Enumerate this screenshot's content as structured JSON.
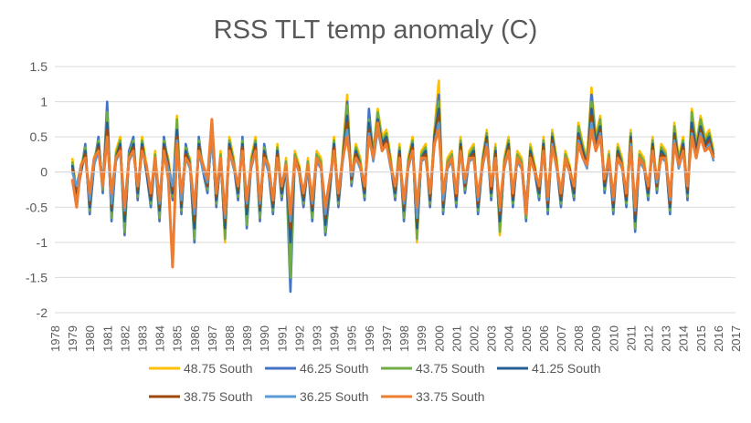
{
  "chart_data": {
    "type": "line",
    "title": "RSS TLT temp anomaly (C)",
    "xlabel": "",
    "ylabel": "",
    "xlim": [
      1978,
      2017
    ],
    "ylim": [
      -2,
      1.5
    ],
    "x_ticks": [
      "1978",
      "1979",
      "1980",
      "1981",
      "1982",
      "1983",
      "1984",
      "1985",
      "1986",
      "1987",
      "1988",
      "1989",
      "1990",
      "1991",
      "1992",
      "1993",
      "1994",
      "1995",
      "1996",
      "1997",
      "1998",
      "1999",
      "2000",
      "2001",
      "2002",
      "2003",
      "2004",
      "2005",
      "2006",
      "2007",
      "2008",
      "2009",
      "2010",
      "2011",
      "2012",
      "2013",
      "2014",
      "2015",
      "2016",
      "2017"
    ],
    "y_ticks": [
      "1.5",
      "1",
      "0.5",
      "0",
      "-0.5",
      "-1",
      "-1.5",
      "-2"
    ],
    "grid": true,
    "legend_position": "bottom",
    "x_start": 1979.0,
    "x_step_years": 0.25,
    "series": [
      {
        "name": "48.75 South",
        "color": "#FFC000",
        "values": [
          0.2,
          -0.3,
          0.1,
          0.3,
          -0.5,
          0.2,
          0.4,
          -0.2,
          0.9,
          -0.6,
          0.3,
          0.5,
          -0.8,
          0.2,
          0.4,
          -0.3,
          0.5,
          0.1,
          -0.4,
          0.3,
          -0.6,
          0.4,
          0.2,
          -0.3,
          0.8,
          -0.5,
          0.3,
          0.2,
          -0.9,
          0.4,
          0.1,
          -0.2,
          0.6,
          -0.4,
          0.3,
          -1.0,
          0.5,
          0.2,
          -0.3,
          0.4,
          -0.7,
          0.2,
          0.5,
          -0.6,
          0.3,
          0.1,
          -0.5,
          0.4,
          -0.3,
          0.2,
          -0.9,
          0.3,
          0.1,
          -0.4,
          0.2,
          -0.6,
          0.3,
          0.2,
          -0.8,
          -0.2,
          0.5,
          -0.4,
          0.3,
          1.1,
          -0.1,
          0.4,
          0.2,
          -0.3,
          0.8,
          0.3,
          0.9,
          0.5,
          0.6,
          0.2,
          -0.3,
          0.4,
          -0.6,
          0.2,
          0.5,
          -1.0,
          0.3,
          0.4,
          -0.4,
          0.6,
          1.3,
          -0.5,
          0.2,
          0.3,
          -0.4,
          0.5,
          -0.2,
          0.3,
          0.4,
          -0.5,
          0.2,
          0.6,
          -0.3,
          0.4,
          -0.9,
          0.2,
          0.5,
          -0.4,
          0.3,
          0.2,
          -0.6,
          0.4,
          0.1,
          -0.3,
          0.5,
          -0.5,
          0.6,
          0.2,
          -0.4,
          0.3,
          0.1,
          -0.3,
          0.7,
          0.4,
          0.2,
          1.2,
          0.5,
          0.8,
          -0.2,
          0.3,
          -0.5,
          0.4,
          0.2,
          -0.4,
          0.6,
          -0.8,
          0.3,
          0.2,
          -0.3,
          0.5,
          -0.2,
          0.4,
          0.3,
          -0.5,
          0.7,
          0.2,
          0.5,
          -0.3,
          0.9,
          0.4,
          0.8,
          0.5,
          0.6,
          0.3
        ]
      },
      {
        "name": "46.25 South",
        "color": "#4472C4",
        "values": [
          0.1,
          -0.4,
          0.0,
          0.4,
          -0.6,
          0.1,
          0.5,
          -0.3,
          1.0,
          -0.7,
          0.2,
          0.4,
          -0.9,
          0.3,
          0.5,
          -0.4,
          0.4,
          0.0,
          -0.5,
          0.2,
          -0.7,
          0.5,
          0.1,
          -0.4,
          0.7,
          -0.6,
          0.4,
          0.1,
          -1.0,
          0.5,
          0.0,
          -0.3,
          0.7,
          -0.5,
          0.2,
          -0.9,
          0.4,
          0.1,
          -0.4,
          0.5,
          -0.8,
          0.1,
          0.4,
          -0.7,
          0.4,
          0.0,
          -0.6,
          0.3,
          -0.4,
          0.1,
          -1.7,
          0.2,
          0.0,
          -0.5,
          0.1,
          -0.7,
          0.2,
          0.1,
          -0.9,
          -0.3,
          0.4,
          -0.5,
          0.2,
          1.0,
          -0.2,
          0.3,
          0.1,
          -0.4,
          0.9,
          0.2,
          0.8,
          0.4,
          0.5,
          0.1,
          -0.4,
          0.3,
          -0.7,
          0.1,
          0.4,
          -0.9,
          0.2,
          0.3,
          -0.5,
          0.5,
          1.1,
          -0.6,
          0.1,
          0.2,
          -0.5,
          0.4,
          -0.3,
          0.2,
          0.3,
          -0.6,
          0.1,
          0.5,
          -0.4,
          0.3,
          -0.8,
          0.1,
          0.4,
          -0.5,
          0.2,
          0.1,
          -0.7,
          0.3,
          0.0,
          -0.4,
          0.4,
          -0.6,
          0.5,
          0.1,
          -0.5,
          0.2,
          0.0,
          -0.4,
          0.6,
          0.3,
          0.1,
          1.1,
          0.4,
          0.7,
          -0.3,
          0.2,
          -0.6,
          0.3,
          0.1,
          -0.5,
          0.5,
          -0.85,
          0.2,
          0.1,
          -0.4,
          0.4,
          -0.3,
          0.3,
          0.2,
          -0.6,
          0.6,
          0.1,
          0.4,
          -0.4,
          0.8,
          0.3,
          0.7,
          0.4,
          0.5,
          0.2
        ]
      },
      {
        "name": "43.75 South",
        "color": "#70AD47",
        "values": [
          0.15,
          -0.35,
          0.05,
          0.35,
          -0.55,
          0.15,
          0.45,
          -0.25,
          0.85,
          -0.65,
          0.25,
          0.45,
          -0.85,
          0.25,
          0.45,
          -0.35,
          0.45,
          0.05,
          -0.45,
          0.25,
          -0.65,
          0.45,
          0.15,
          -0.35,
          0.75,
          -0.55,
          0.35,
          0.15,
          -0.95,
          0.45,
          0.05,
          -0.25,
          0.65,
          -0.45,
          0.25,
          -0.95,
          0.45,
          0.15,
          -0.35,
          0.45,
          -0.75,
          0.15,
          0.45,
          -0.65,
          0.35,
          0.05,
          -0.55,
          0.35,
          -0.35,
          0.15,
          -1.5,
          0.25,
          0.05,
          -0.45,
          0.15,
          -0.65,
          0.25,
          0.15,
          -0.85,
          -0.25,
          0.45,
          -0.45,
          0.25,
          0.95,
          -0.15,
          0.35,
          0.15,
          -0.35,
          0.75,
          0.25,
          0.85,
          0.45,
          0.55,
          0.15,
          -0.35,
          0.35,
          -0.65,
          0.15,
          0.45,
          -0.95,
          0.25,
          0.35,
          -0.45,
          0.55,
          1.0,
          -0.55,
          0.15,
          0.25,
          -0.45,
          0.45,
          -0.25,
          0.25,
          0.35,
          -0.55,
          0.15,
          0.55,
          -0.35,
          0.35,
          -0.85,
          0.15,
          0.45,
          -0.45,
          0.25,
          0.15,
          -0.65,
          0.35,
          0.05,
          -0.35,
          0.45,
          -0.55,
          0.55,
          0.15,
          -0.45,
          0.25,
          0.05,
          -0.35,
          0.65,
          0.35,
          0.15,
          1.0,
          0.45,
          0.75,
          -0.25,
          0.25,
          -0.55,
          0.35,
          0.15,
          -0.45,
          0.55,
          -0.8,
          0.25,
          0.15,
          -0.35,
          0.45,
          -0.25,
          0.35,
          0.25,
          -0.55,
          0.65,
          0.15,
          0.45,
          -0.35,
          0.85,
          0.35,
          0.75,
          0.45,
          0.55,
          0.25
        ]
      },
      {
        "name": "41.25 South",
        "color": "#255E91",
        "values": [
          0.1,
          -0.3,
          0.0,
          0.3,
          -0.5,
          0.1,
          0.4,
          -0.2,
          0.7,
          -0.55,
          0.2,
          0.4,
          -0.7,
          0.2,
          0.4,
          -0.3,
          0.4,
          0.0,
          -0.4,
          0.2,
          -0.55,
          0.4,
          0.1,
          -0.3,
          0.6,
          -0.5,
          0.3,
          0.1,
          -0.8,
          0.4,
          0.0,
          -0.2,
          0.55,
          -0.4,
          0.2,
          -0.8,
          0.4,
          0.1,
          -0.3,
          0.4,
          -0.6,
          0.1,
          0.4,
          -0.55,
          0.3,
          0.0,
          -0.5,
          0.3,
          -0.3,
          0.1,
          -1.0,
          0.2,
          0.0,
          -0.4,
          0.1,
          -0.55,
          0.2,
          0.1,
          -0.75,
          -0.2,
          0.4,
          -0.4,
          0.2,
          0.8,
          -0.1,
          0.3,
          0.1,
          -0.3,
          0.7,
          0.2,
          0.75,
          0.4,
          0.5,
          0.1,
          -0.3,
          0.3,
          -0.55,
          0.1,
          0.4,
          -0.8,
          0.2,
          0.3,
          -0.4,
          0.5,
          0.9,
          -0.5,
          0.1,
          0.2,
          -0.4,
          0.4,
          -0.2,
          0.2,
          0.3,
          -0.5,
          0.1,
          0.5,
          -0.3,
          0.3,
          -0.7,
          0.1,
          0.4,
          -0.4,
          0.2,
          0.1,
          -0.55,
          0.3,
          0.0,
          -0.3,
          0.4,
          -0.5,
          0.5,
          0.1,
          -0.4,
          0.2,
          0.0,
          -0.3,
          0.55,
          0.3,
          0.1,
          0.9,
          0.4,
          0.65,
          -0.2,
          0.2,
          -0.5,
          0.3,
          0.1,
          -0.4,
          0.5,
          -0.7,
          0.2,
          0.1,
          -0.3,
          0.4,
          -0.2,
          0.3,
          0.2,
          -0.5,
          0.55,
          0.1,
          0.4,
          -0.3,
          0.7,
          0.3,
          0.65,
          0.4,
          0.5,
          0.2
        ]
      },
      {
        "name": "38.75 South",
        "color": "#9E480E",
        "values": [
          0.05,
          -0.25,
          0.05,
          0.25,
          -0.45,
          0.15,
          0.35,
          -0.15,
          0.6,
          -0.5,
          0.2,
          0.35,
          -0.6,
          0.2,
          0.35,
          -0.25,
          0.35,
          0.05,
          -0.35,
          0.2,
          -0.5,
          0.35,
          0.1,
          -0.25,
          0.5,
          -0.45,
          0.25,
          0.1,
          -0.7,
          0.35,
          0.05,
          -0.2,
          0.5,
          -0.35,
          0.2,
          -0.7,
          0.35,
          0.1,
          -0.25,
          0.35,
          -0.5,
          0.1,
          0.35,
          -0.5,
          0.25,
          0.05,
          -0.45,
          0.25,
          -0.25,
          0.1,
          -0.8,
          0.2,
          0.05,
          -0.35,
          0.1,
          -0.5,
          0.2,
          0.1,
          -0.65,
          -0.15,
          0.35,
          -0.35,
          0.2,
          0.7,
          -0.1,
          0.25,
          0.1,
          -0.25,
          0.6,
          0.2,
          0.65,
          0.35,
          0.45,
          0.1,
          -0.25,
          0.25,
          -0.5,
          0.1,
          0.35,
          -0.7,
          0.2,
          0.25,
          -0.35,
          0.45,
          0.8,
          -0.45,
          0.1,
          0.2,
          -0.35,
          0.35,
          -0.2,
          0.2,
          0.25,
          -0.45,
          0.1,
          0.45,
          -0.25,
          0.25,
          -0.6,
          0.1,
          0.35,
          -0.35,
          0.2,
          0.1,
          -0.5,
          0.25,
          0.05,
          -0.25,
          0.35,
          -0.45,
          0.45,
          0.1,
          -0.35,
          0.2,
          0.05,
          -0.25,
          0.5,
          0.25,
          0.1,
          0.8,
          0.35,
          0.6,
          -0.15,
          0.2,
          -0.45,
          0.25,
          0.1,
          -0.35,
          0.45,
          -0.6,
          0.2,
          0.1,
          -0.25,
          0.35,
          -0.2,
          0.25,
          0.2,
          -0.45,
          0.5,
          0.1,
          0.35,
          -0.25,
          0.6,
          0.25,
          0.6,
          0.35,
          0.45,
          0.2
        ]
      },
      {
        "name": "36.25 South",
        "color": "#5B9BD5",
        "values": [
          0.0,
          -0.2,
          0.1,
          0.2,
          -0.4,
          0.1,
          0.3,
          -0.1,
          0.5,
          -0.45,
          0.15,
          0.3,
          -0.55,
          0.15,
          0.3,
          -0.2,
          0.3,
          0.1,
          -0.3,
          0.15,
          -0.45,
          0.3,
          0.05,
          -0.2,
          0.45,
          -0.4,
          0.2,
          0.05,
          -0.6,
          0.3,
          0.0,
          -0.15,
          0.45,
          -0.3,
          0.15,
          -0.65,
          0.3,
          0.05,
          -0.2,
          0.3,
          -0.45,
          0.05,
          0.3,
          -0.45,
          0.2,
          0.0,
          -0.4,
          0.2,
          -0.2,
          0.05,
          -0.7,
          0.15,
          0.0,
          -0.3,
          0.05,
          -0.45,
          0.15,
          0.05,
          -0.6,
          -0.1,
          0.3,
          -0.3,
          0.15,
          0.6,
          -0.05,
          0.2,
          0.05,
          -0.2,
          0.55,
          0.15,
          0.6,
          0.3,
          0.4,
          0.05,
          -0.2,
          0.2,
          -0.45,
          0.05,
          0.3,
          -0.65,
          0.15,
          0.2,
          -0.3,
          0.4,
          0.7,
          -0.4,
          0.05,
          0.15,
          -0.3,
          0.3,
          -0.15,
          0.15,
          0.2,
          -0.4,
          0.05,
          0.4,
          -0.2,
          0.2,
          -0.55,
          0.05,
          0.3,
          -0.3,
          0.15,
          0.05,
          -0.45,
          0.2,
          0.0,
          -0.2,
          0.3,
          -0.4,
          0.4,
          0.05,
          -0.3,
          0.15,
          0.0,
          -0.2,
          0.45,
          0.2,
          0.05,
          0.7,
          0.3,
          0.55,
          -0.1,
          0.15,
          -0.4,
          0.2,
          0.05,
          -0.3,
          0.4,
          -0.55,
          0.15,
          0.05,
          -0.2,
          0.3,
          -0.15,
          0.2,
          0.15,
          -0.4,
          0.45,
          0.05,
          0.3,
          -0.2,
          0.55,
          0.2,
          0.55,
          0.3,
          0.4,
          0.15
        ]
      },
      {
        "name": "33.75 South",
        "color": "#ED7D31",
        "values": [
          -0.1,
          -0.5,
          0.1,
          0.2,
          -0.3,
          0.2,
          0.3,
          -0.2,
          0.5,
          -0.3,
          0.2,
          0.3,
          -0.5,
          0.2,
          0.3,
          -0.2,
          0.3,
          0.1,
          -0.3,
          0.2,
          -0.4,
          0.3,
          -0.1,
          -1.35,
          0.4,
          -0.3,
          0.2,
          0.1,
          -0.5,
          0.3,
          0.1,
          -0.1,
          0.75,
          -0.3,
          0.2,
          -0.6,
          0.3,
          0.1,
          -0.2,
          0.3,
          -0.4,
          0.1,
          0.3,
          -0.4,
          0.2,
          0.1,
          -0.4,
          0.2,
          -0.2,
          0.1,
          -0.6,
          0.2,
          0.0,
          -0.3,
          0.1,
          -0.4,
          0.2,
          0.1,
          -0.5,
          -0.1,
          0.3,
          -0.3,
          0.2,
          0.5,
          0.0,
          0.2,
          0.1,
          -0.2,
          0.5,
          0.2,
          0.7,
          0.3,
          0.4,
          0.1,
          -0.2,
          0.2,
          -0.4,
          0.1,
          0.3,
          -0.5,
          0.2,
          0.2,
          -0.3,
          0.4,
          0.6,
          -0.3,
          0.1,
          0.2,
          -0.3,
          0.3,
          -0.1,
          0.2,
          0.2,
          -0.35,
          0.1,
          0.35,
          -0.2,
          0.2,
          -0.5,
          0.1,
          0.3,
          -0.3,
          0.2,
          0.1,
          -0.6,
          0.2,
          0.0,
          -0.2,
          0.3,
          -0.35,
          0.35,
          0.1,
          -0.3,
          0.2,
          0.0,
          -0.2,
          0.4,
          0.2,
          0.1,
          0.6,
          0.3,
          0.5,
          -0.1,
          0.2,
          -0.35,
          0.2,
          0.1,
          -0.3,
          0.35,
          -0.5,
          0.2,
          0.1,
          -0.2,
          0.3,
          -0.1,
          0.2,
          0.2,
          -0.35,
          0.4,
          0.1,
          0.3,
          -0.2,
          0.5,
          0.2,
          0.5,
          0.3,
          0.35,
          0.2
        ]
      }
    ]
  }
}
